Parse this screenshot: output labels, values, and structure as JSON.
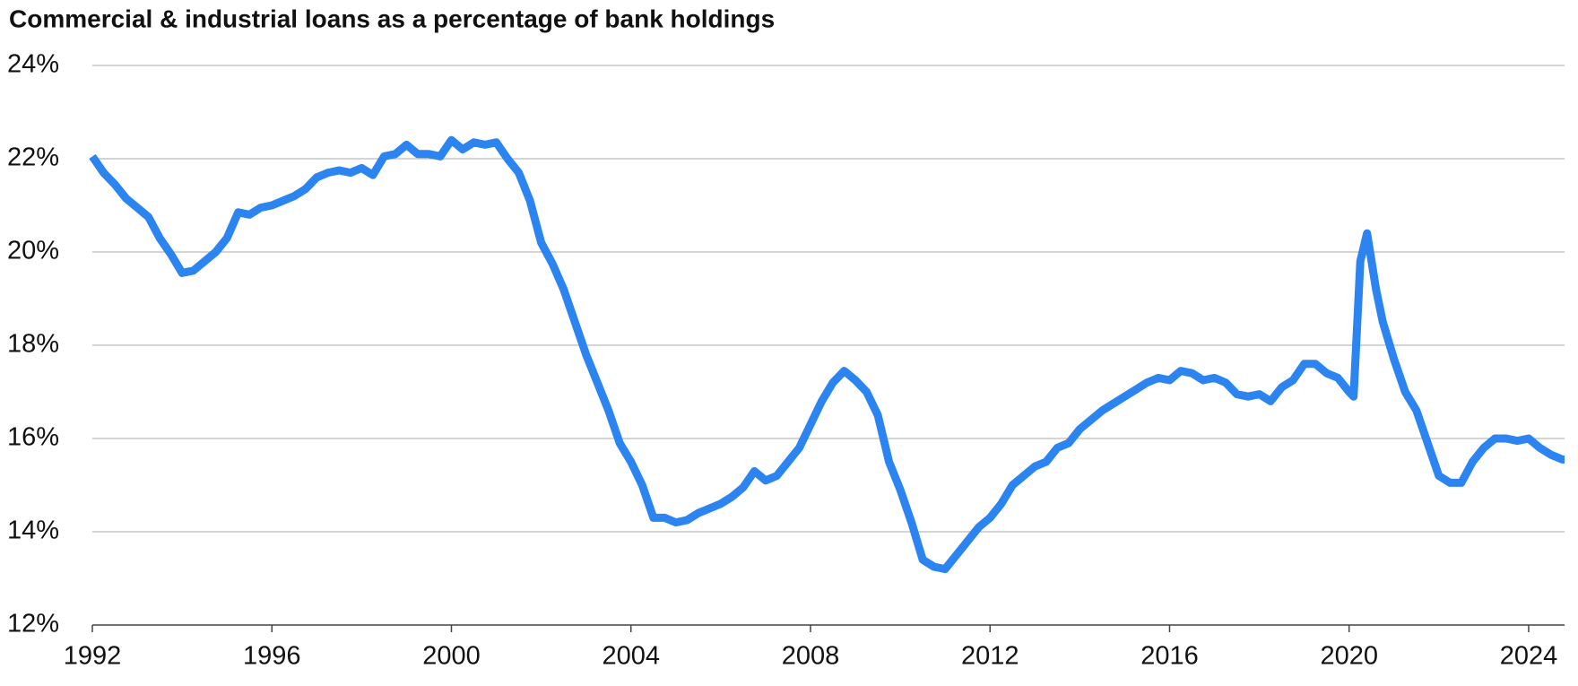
{
  "chart_data": {
    "type": "line",
    "title": "Commercial & industrial loans as a percentage of bank holdings",
    "x": [
      1992,
      1992.25,
      1992.5,
      1992.75,
      1993,
      1993.25,
      1993.5,
      1993.75,
      1994,
      1994.25,
      1994.5,
      1994.75,
      1995,
      1995.25,
      1995.5,
      1995.75,
      1996,
      1996.25,
      1996.5,
      1996.75,
      1997,
      1997.25,
      1997.5,
      1997.75,
      1998,
      1998.25,
      1998.5,
      1998.75,
      1999,
      1999.25,
      1999.5,
      1999.75,
      2000,
      2000.25,
      2000.5,
      2000.75,
      2001,
      2001.25,
      2001.5,
      2001.75,
      2002,
      2002.25,
      2002.5,
      2002.75,
      2003,
      2003.25,
      2003.5,
      2003.75,
      2004,
      2004.25,
      2004.5,
      2004.75,
      2005,
      2005.25,
      2005.5,
      2005.75,
      2006,
      2006.25,
      2006.5,
      2006.75,
      2007,
      2007.25,
      2007.5,
      2007.75,
      2008,
      2008.25,
      2008.5,
      2008.75,
      2009,
      2009.25,
      2009.5,
      2009.75,
      2010,
      2010.25,
      2010.5,
      2010.75,
      2011,
      2011.25,
      2011.5,
      2011.75,
      2012,
      2012.25,
      2012.5,
      2012.75,
      2013,
      2013.25,
      2013.5,
      2013.75,
      2014,
      2014.25,
      2014.5,
      2014.75,
      2015,
      2015.25,
      2015.5,
      2015.75,
      2016,
      2016.25,
      2016.5,
      2016.75,
      2017,
      2017.25,
      2017.5,
      2017.75,
      2018,
      2018.25,
      2018.5,
      2018.75,
      2019,
      2019.25,
      2019.5,
      2019.75,
      2020,
      2020.1,
      2020.25,
      2020.4,
      2020.6,
      2020.75,
      2021,
      2021.25,
      2021.5,
      2021.75,
      2022,
      2022.25,
      2022.5,
      2022.75,
      2023,
      2023.25,
      2023.5,
      2023.75,
      2024,
      2024.25,
      2024.5,
      2024.75,
      2024.8
    ],
    "series": [
      {
        "color": "#2b84f0",
        "values": [
          22.05,
          21.7,
          21.45,
          21.15,
          20.95,
          20.75,
          20.3,
          19.95,
          19.55,
          19.6,
          19.8,
          20.0,
          20.3,
          20.85,
          20.8,
          20.95,
          21.0,
          21.1,
          21.2,
          21.35,
          21.6,
          21.7,
          21.75,
          21.7,
          21.8,
          21.65,
          22.05,
          22.1,
          22.3,
          22.1,
          22.1,
          22.05,
          22.4,
          22.2,
          22.35,
          22.3,
          22.35,
          22.0,
          21.7,
          21.1,
          20.2,
          19.75,
          19.2,
          18.5,
          17.8,
          17.2,
          16.6,
          15.9,
          15.5,
          15.0,
          14.3,
          14.3,
          14.2,
          14.25,
          14.4,
          14.5,
          14.6,
          14.75,
          14.95,
          15.3,
          15.1,
          15.2,
          15.5,
          15.8,
          16.3,
          16.8,
          17.2,
          17.45,
          17.25,
          17.0,
          16.5,
          15.5,
          14.9,
          14.2,
          13.4,
          13.25,
          13.2,
          13.5,
          13.8,
          14.1,
          14.3,
          14.6,
          15.0,
          15.2,
          15.4,
          15.5,
          15.8,
          15.9,
          16.2,
          16.4,
          16.6,
          16.75,
          16.9,
          17.05,
          17.2,
          17.3,
          17.25,
          17.45,
          17.4,
          17.25,
          17.3,
          17.2,
          16.95,
          16.9,
          16.95,
          16.8,
          17.1,
          17.25,
          17.6,
          17.6,
          17.4,
          17.3,
          17.0,
          16.9,
          19.8,
          20.4,
          19.2,
          18.5,
          17.7,
          17.0,
          16.6,
          15.9,
          15.2,
          15.05,
          15.05,
          15.5,
          15.8,
          16.0,
          16.0,
          15.95,
          16.0,
          15.8,
          15.65,
          15.55,
          15.55
        ]
      }
    ],
    "xlim": [
      1992,
      2024.8
    ],
    "xticks": [
      1992,
      1996,
      2000,
      2004,
      2008,
      2012,
      2016,
      2020,
      2024
    ],
    "ylim": [
      12,
      24
    ],
    "yticks": [
      {
        "value": 12,
        "label": "12%"
      },
      {
        "value": 14,
        "label": "14%"
      },
      {
        "value": 16,
        "label": "16%"
      },
      {
        "value": 18,
        "label": "18%"
      },
      {
        "value": 20,
        "label": "20%"
      },
      {
        "value": 22,
        "label": "22%"
      },
      {
        "value": 24,
        "label": "24%"
      }
    ],
    "grid": true
  }
}
